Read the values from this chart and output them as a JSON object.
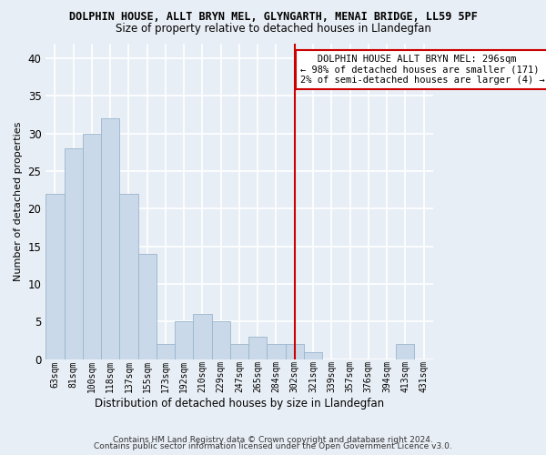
{
  "title": "DOLPHIN HOUSE, ALLT BRYN MEL, GLYNGARTH, MENAI BRIDGE, LL59 5PF",
  "subtitle": "Size of property relative to detached houses in Llandegfan",
  "xlabel": "Distribution of detached houses by size in Llandegfan",
  "ylabel": "Number of detached properties",
  "categories": [
    "63sqm",
    "81sqm",
    "100sqm",
    "118sqm",
    "137sqm",
    "155sqm",
    "173sqm",
    "192sqm",
    "210sqm",
    "229sqm",
    "247sqm",
    "265sqm",
    "284sqm",
    "302sqm",
    "321sqm",
    "339sqm",
    "357sqm",
    "376sqm",
    "394sqm",
    "413sqm",
    "431sqm"
  ],
  "values": [
    22,
    28,
    30,
    32,
    22,
    14,
    2,
    5,
    6,
    5,
    2,
    3,
    2,
    2,
    1,
    0,
    0,
    0,
    0,
    2,
    0
  ],
  "bar_color": "#c9d9ea",
  "bar_edge_color": "#9ab5cc",
  "bg_color": "#e8eef5",
  "ylim": [
    0,
    42
  ],
  "yticks": [
    0,
    5,
    10,
    15,
    20,
    25,
    30,
    35,
    40
  ],
  "vline_color": "#cc0000",
  "annotation_line1": "   DOLPHIN HOUSE ALLT BRYN MEL: 296sqm",
  "annotation_line2": "← 98% of detached houses are smaller (171)",
  "annotation_line3": "2% of semi-detached houses are larger (4) →",
  "annotation_box_color": "#ffffff",
  "annotation_box_edge": "#cc0000",
  "footer1": "Contains HM Land Registry data © Crown copyright and database right 2024.",
  "footer2": "Contains public sector information licensed under the Open Government Licence v3.0."
}
